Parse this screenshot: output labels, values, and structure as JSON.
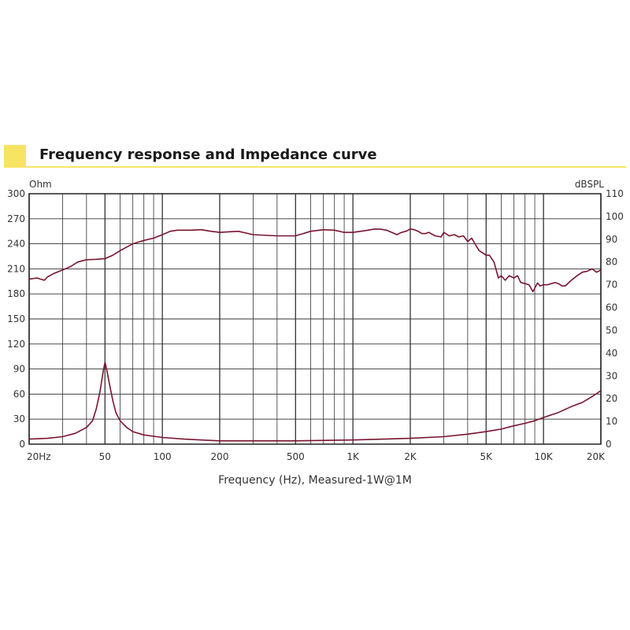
{
  "header": {
    "title": "Frequency response and Impedance curve",
    "accent_color": "#f7e463"
  },
  "chart_data": {
    "type": "line",
    "xlabel": "Frequency (Hz), Measured-1W@1M",
    "x_scale": "log",
    "xlim": [
      20,
      20000
    ],
    "x_ticks": [
      {
        "value": 20,
        "label": "20Hz"
      },
      {
        "value": 50,
        "label": "50"
      },
      {
        "value": 100,
        "label": "100"
      },
      {
        "value": 200,
        "label": "200"
      },
      {
        "value": 500,
        "label": "500"
      },
      {
        "value": 1000,
        "label": "1K"
      },
      {
        "value": 2000,
        "label": "2K"
      },
      {
        "value": 5000,
        "label": "5K"
      },
      {
        "value": 10000,
        "label": "10K"
      },
      {
        "value": 20000,
        "label": "20K"
      }
    ],
    "y_left": {
      "unit": "Ohm",
      "ylim": [
        0,
        300
      ],
      "ticks": [
        "0",
        "30",
        "60",
        "90",
        "120",
        "150",
        "180",
        "210",
        "240",
        "270",
        "300"
      ]
    },
    "y_right": {
      "unit": "dBSPL",
      "ylim": [
        0,
        110
      ],
      "ticks": [
        "0",
        "10",
        "20",
        "30",
        "40",
        "50",
        "60",
        "70",
        "80",
        "90",
        "100",
        "110"
      ]
    },
    "grid": true,
    "line_color": "#7a1430",
    "series": [
      {
        "axis": "right",
        "x": [
          20,
          22,
          24,
          25,
          27,
          30,
          33,
          36,
          40,
          45,
          50,
          55,
          60,
          70,
          80,
          90,
          100,
          110,
          120,
          140,
          160,
          180,
          200,
          250,
          300,
          400,
          500,
          600,
          700,
          800,
          900,
          1000,
          1100,
          1200,
          1300,
          1400,
          1500,
          1600,
          1700,
          1800,
          1900,
          2000,
          2100,
          2200,
          2300,
          2400,
          2500,
          2700,
          2900,
          3000,
          3200,
          3400,
          3600,
          3800,
          4000,
          4200,
          4400,
          4600,
          4800,
          5000,
          5200,
          5500,
          5800,
          6000,
          6300,
          6600,
          7000,
          7300,
          7600,
          8000,
          8400,
          8800,
          9000,
          9300,
          9600,
          10000,
          10500,
          11000,
          11500,
          12000,
          12500,
          13000,
          14000,
          15000,
          16000,
          17000,
          18000,
          19000,
          20000
        ],
        "y": [
          72.5,
          73,
          72,
          73.5,
          75,
          76.5,
          78,
          80,
          81,
          81.2,
          81.5,
          83,
          85,
          88,
          89.5,
          90.5,
          92,
          93.5,
          94,
          94,
          94.2,
          93.5,
          93,
          93.5,
          92,
          91.5,
          91.5,
          93.5,
          94.2,
          94,
          93,
          93,
          93.5,
          94,
          94.5,
          94.4,
          94,
          93,
          92,
          93,
          93.5,
          94.5,
          94.2,
          93.5,
          92.5,
          92.5,
          93,
          91.5,
          91,
          93,
          91.5,
          92,
          91,
          91.5,
          89,
          90.5,
          87.5,
          85,
          84,
          83,
          83,
          80,
          73,
          74,
          72,
          74,
          73,
          74,
          71,
          70.5,
          70,
          67,
          68.5,
          70.8,
          69.5,
          70,
          70,
          70.5,
          71,
          70.5,
          69.5,
          69.5,
          72,
          74,
          75.5,
          76,
          77,
          75.5,
          76.5
        ]
      },
      {
        "axis": "left",
        "x": [
          20,
          25,
          30,
          35,
          40,
          43,
          45,
          47,
          49,
          50,
          51,
          53,
          55,
          57,
          60,
          65,
          70,
          80,
          100,
          130,
          160,
          200,
          300,
          500,
          1000,
          2000,
          3000,
          4000,
          5000,
          6000,
          7000,
          8000,
          9000,
          10000,
          12000,
          14000,
          16000,
          18000,
          20000
        ],
        "y": [
          6,
          7,
          9,
          13,
          20,
          28,
          42,
          62,
          88,
          98,
          90,
          70,
          52,
          38,
          28,
          20,
          15,
          11,
          8,
          6,
          5,
          4,
          4,
          4,
          5,
          7,
          9,
          12,
          15,
          18,
          22,
          25,
          28,
          32,
          38,
          45,
          50,
          57,
          64
        ]
      }
    ]
  }
}
